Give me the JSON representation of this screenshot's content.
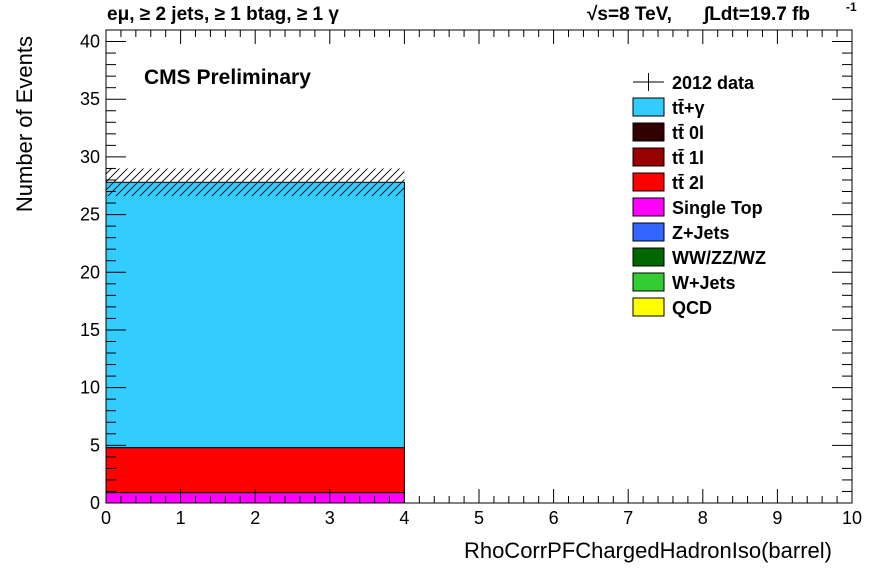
{
  "header": {
    "selection_label": "eμ, ≥ 2 jets, ≥ 1 btag, ≥ 1 γ",
    "energy_label": "√s=8 TeV,",
    "lumi_label": "∫Ldt=19.7 fb",
    "lumi_exponent": "-1"
  },
  "chart_data": {
    "type": "bar",
    "stacked": true,
    "title": "CMS Preliminary",
    "xlabel": "RhoCorrPFChargedHadronIso(barrel)",
    "ylabel": "Number of Events",
    "xlim": [
      0,
      10
    ],
    "ylim": [
      0,
      41
    ],
    "x_ticks": [
      "0",
      "1",
      "2",
      "3",
      "4",
      "5",
      "6",
      "7",
      "8",
      "9",
      "10"
    ],
    "y_ticks": [
      "0",
      "5",
      "10",
      "15",
      "20",
      "25",
      "30",
      "35",
      "40"
    ],
    "bins": [
      [
        0,
        4
      ],
      [
        4,
        10
      ]
    ],
    "series": [
      {
        "name": "QCD",
        "color": "#ffff00",
        "values": [
          0,
          0
        ]
      },
      {
        "name": "W+Jets",
        "color": "#33cc33",
        "values": [
          0,
          0
        ]
      },
      {
        "name": "WW/ZZ/WZ",
        "color": "#006600",
        "values": [
          0,
          0
        ]
      },
      {
        "name": "Z+Jets",
        "color": "#3366ff",
        "values": [
          0,
          0
        ]
      },
      {
        "name": "Single Top",
        "color": "#ff00ff",
        "values": [
          0.9,
          0
        ]
      },
      {
        "name": "tt̄ 2l",
        "color": "#ff0000",
        "values": [
          3.9,
          0
        ]
      },
      {
        "name": "tt̄ 1l",
        "color": "#990000",
        "values": [
          0,
          0
        ]
      },
      {
        "name": "tt̄ 0l",
        "color": "#330000",
        "values": [
          0,
          0
        ]
      },
      {
        "name": "tt̄+γ",
        "color": "#33ccff",
        "values": [
          23.0,
          0
        ]
      }
    ],
    "total": [
      27.8,
      0
    ],
    "uncertainty_band": [
      [
        26.6,
        29.0
      ],
      [
        0,
        0
      ]
    ],
    "data_label": "2012 data",
    "legend": [
      {
        "name": "2012 data",
        "marker": "data"
      },
      {
        "name": "tt̄+γ",
        "color": "#33ccff"
      },
      {
        "name": "tt̄ 0l",
        "color": "#330000"
      },
      {
        "name": "tt̄ 1l",
        "color": "#990000"
      },
      {
        "name": "tt̄ 2l",
        "color": "#ff0000"
      },
      {
        "name": "Single Top",
        "color": "#ff00ff"
      },
      {
        "name": "Z+Jets",
        "color": "#3366ff"
      },
      {
        "name": "WW/ZZ/WZ",
        "color": "#006600"
      },
      {
        "name": "W+Jets",
        "color": "#33cc33"
      },
      {
        "name": "QCD",
        "color": "#ffff00"
      }
    ],
    "legend_position": "top-right",
    "grid": false
  }
}
